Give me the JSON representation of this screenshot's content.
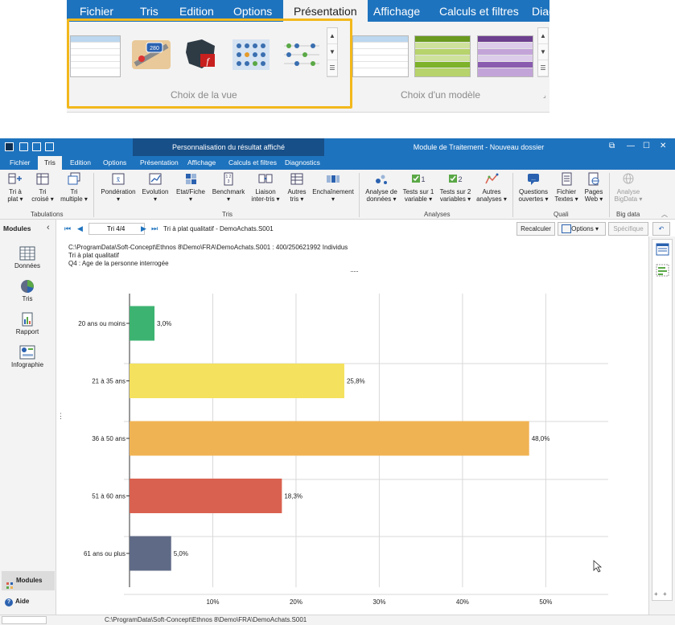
{
  "zoom": {
    "tabs": [
      "Fichier",
      "Tris",
      "Edition",
      "Options",
      "Présentation",
      "Affichage",
      "Calculs et filtres",
      "Diag"
    ],
    "active_tab": "Présentation",
    "group_view_label": "Choix de la vue",
    "group_model_label": "Choix d'un modèle",
    "highlight_color": "#f2b81c"
  },
  "app": {
    "ctx_title": "Personnalisation du résultat affiché",
    "window_title": "Module de Traitement - Nouveau dossier",
    "tabs": [
      "Fichier",
      "Tris",
      "Edition",
      "Options",
      "Présentation",
      "Affichage",
      "Calculs et filtres",
      "Diagnostics"
    ],
    "active_tab": "Tris",
    "ribbon": {
      "groups": {
        "tabulations": "Tabulations",
        "tris": "Tris",
        "analyses": "Analyses",
        "quali": "Quali",
        "bigdata": "Big data"
      },
      "buttons": [
        [
          "Tri à",
          "plat ▾"
        ],
        [
          "Tri",
          "croisé ▾"
        ],
        [
          "Tri",
          "multiple ▾"
        ],
        [
          "Pondération",
          "▾"
        ],
        [
          "Evolution",
          "▾"
        ],
        [
          "Etat/Fiche",
          "▾"
        ],
        [
          "Benchmark",
          "▾"
        ],
        [
          "Liaison",
          "inter-tris ▾"
        ],
        [
          "Autres",
          "tris ▾"
        ],
        [
          "Enchaînement",
          "▾"
        ],
        [
          "Analyse de",
          "données ▾"
        ],
        [
          "Tests sur 1",
          "variable ▾"
        ],
        [
          "Tests sur 2",
          "variables ▾"
        ],
        [
          "Autres",
          "analyses ▾"
        ],
        [
          "Questions",
          "ouvertes ▾"
        ],
        [
          "Fichier",
          "Textes ▾"
        ],
        [
          "Pages",
          "Web ▾"
        ],
        [
          "Analyse",
          "BigData ▾"
        ]
      ]
    },
    "modules": {
      "header": "Modules",
      "items": [
        "Données",
        "Tris",
        "Rapport",
        "Infographie"
      ],
      "active": "Modules",
      "help": "Aide"
    },
    "navigator": {
      "position": "Tri 4/4",
      "title": "Tri à plat qualitatif - DemoAchats.S001",
      "recalc": "Recalculer",
      "options": "Options",
      "specific": "Spécifique"
    },
    "info": {
      "path_line": "C:\\ProgramData\\Soft-Concept\\Ethnos 8\\Demo\\FRA\\DemoAchats.S001 : 400/250621992 Individus",
      "type_line": "Tri à plat qualitatif",
      "question_line": "Q4  : Age de la personne interrogée"
    },
    "statusbar": {
      "path": "C:\\ProgramData\\Soft-Concept\\Ethnos 8\\Demo\\FRA\\DemoAchats.S001"
    }
  },
  "chart_data": {
    "type": "bar",
    "orientation": "horizontal",
    "categories": [
      "20 ans ou moins",
      "21 à 35 ans",
      "36 à 50 ans",
      "51 à 60 ans",
      "61 ans ou plus"
    ],
    "values": [
      3.0,
      25.8,
      48.0,
      18.3,
      5.0
    ],
    "value_labels": [
      "3,0%",
      "25,8%",
      "48,0%",
      "18,3%",
      "5,0%"
    ],
    "colors": [
      "#3cb371",
      "#f4e15d",
      "#f0b354",
      "#d9614f",
      "#5f6a86"
    ],
    "x_ticks": [
      "10%",
      "20%",
      "30%",
      "40%",
      "50%"
    ],
    "xlim": [
      0,
      57.5
    ],
    "grid": true
  }
}
